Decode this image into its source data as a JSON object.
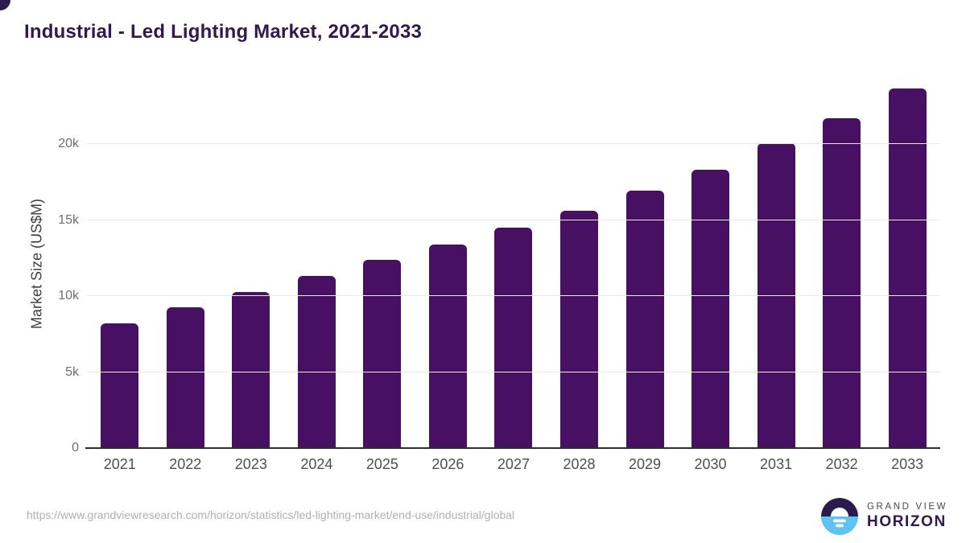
{
  "title": "Industrial - Led Lighting Market, 2021-2033",
  "chart_data": {
    "type": "bar",
    "title": "Industrial - Led Lighting Market, 2021-2033",
    "categories": [
      "2021",
      "2022",
      "2023",
      "2024",
      "2025",
      "2026",
      "2027",
      "2028",
      "2029",
      "2030",
      "2031",
      "2032",
      "2033"
    ],
    "values": [
      8200,
      9250,
      10250,
      11350,
      12400,
      13400,
      14500,
      15600,
      16950,
      18300,
      20050,
      21700,
      23650
    ],
    "xlabel": "",
    "ylabel": "Market Size (US$M)",
    "ylim": [
      0,
      24200
    ],
    "yticks": [
      {
        "value": 0,
        "label": "0"
      },
      {
        "value": 5000,
        "label": "5k"
      },
      {
        "value": 10000,
        "label": "10k"
      },
      {
        "value": 15000,
        "label": "15k"
      },
      {
        "value": 20000,
        "label": "20k"
      }
    ],
    "grid": true,
    "legend_position": "none",
    "bar_color": "#471062"
  },
  "footer": {
    "source_url": "https://www.grandviewresearch.com/horizon/statistics/led-lighting-market/end-use/industrial/global",
    "logo": {
      "icon": "horizon-sun-icon",
      "line1": "GRAND VIEW",
      "line2": "HORIZON"
    }
  },
  "colors": {
    "title": "#31184f",
    "bar": "#471062",
    "axis_line": "#2d2d2d",
    "gridline": "#e9e9e9",
    "y_tick_text": "#707070",
    "x_tick_text": "#4f4f4f",
    "source_url_text": "#b0b0b0",
    "logo_purple": "#2b1b4d",
    "logo_blue": "#5ec3f0",
    "background": "#ffffff"
  }
}
